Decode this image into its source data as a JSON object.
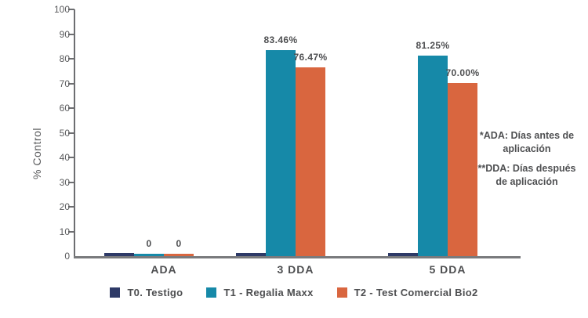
{
  "chart_data": {
    "type": "bar",
    "title": "",
    "ylabel": "% Control",
    "xlabel": "",
    "ylim": [
      0,
      100
    ],
    "yticks": [
      0,
      10,
      20,
      30,
      40,
      50,
      60,
      70,
      80,
      90,
      100
    ],
    "grid": false,
    "legend_position": "bottom",
    "categories": [
      "ADA",
      "3 DDA",
      "5 DDA"
    ],
    "series": [
      {
        "name": "T0. Testigo",
        "color": "#2e3a67",
        "values": [
          0,
          0,
          0
        ],
        "labels": [
          "",
          "",
          ""
        ]
      },
      {
        "name": "T1 - Regalia Maxx",
        "color": "#1689a8",
        "values": [
          0,
          83.46,
          81.25
        ],
        "labels": [
          "0",
          "83.46%",
          "81.25%"
        ]
      },
      {
        "name": "T2 - Test Comercial Bio2",
        "color": "#d9663f",
        "values": [
          0,
          76.47,
          70.0
        ],
        "labels": [
          "0",
          "76.47%",
          "70.00%"
        ]
      }
    ]
  },
  "annotations": {
    "ada_lines": [
      "*ADA: Días antes de",
      "aplicación"
    ],
    "dda_lines": [
      "**DDA: Días después",
      "de aplicación"
    ]
  }
}
